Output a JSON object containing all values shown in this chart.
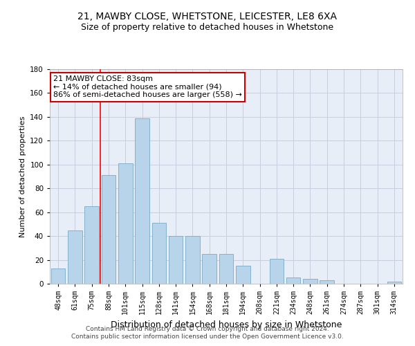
{
  "title1": "21, MAWBY CLOSE, WHETSTONE, LEICESTER, LE8 6XA",
  "title2": "Size of property relative to detached houses in Whetstone",
  "xlabel": "Distribution of detached houses by size in Whetstone",
  "ylabel": "Number of detached properties",
  "categories": [
    "48sqm",
    "61sqm",
    "75sqm",
    "88sqm",
    "101sqm",
    "115sqm",
    "128sqm",
    "141sqm",
    "154sqm",
    "168sqm",
    "181sqm",
    "194sqm",
    "208sqm",
    "221sqm",
    "234sqm",
    "248sqm",
    "261sqm",
    "274sqm",
    "287sqm",
    "301sqm",
    "314sqm"
  ],
  "values": [
    13,
    45,
    65,
    91,
    101,
    139,
    51,
    40,
    40,
    25,
    25,
    15,
    0,
    21,
    5,
    4,
    3,
    0,
    0,
    0,
    2
  ],
  "bar_color": "#b8d4ea",
  "bar_edge_color": "#7aaac8",
  "bar_width": 0.85,
  "ylim": [
    0,
    180
  ],
  "yticks": [
    0,
    20,
    40,
    60,
    80,
    100,
    120,
    140,
    160,
    180
  ],
  "red_line_x": 2.5,
  "annotation_text": "21 MAWBY CLOSE: 83sqm\n← 14% of detached houses are smaller (94)\n86% of semi-detached houses are larger (558) →",
  "annotation_box_color": "#ffffff",
  "annotation_border_color": "#cc0000",
  "footer1": "Contains HM Land Registry data © Crown copyright and database right 2024.",
  "footer2": "Contains public sector information licensed under the Open Government Licence v3.0.",
  "bg_color": "#e8eef8",
  "grid_color": "#c8cedd",
  "title1_fontsize": 10,
  "title2_fontsize": 9,
  "ylabel_fontsize": 8,
  "xlabel_fontsize": 9,
  "tick_fontsize": 7,
  "annotation_fontsize": 8
}
